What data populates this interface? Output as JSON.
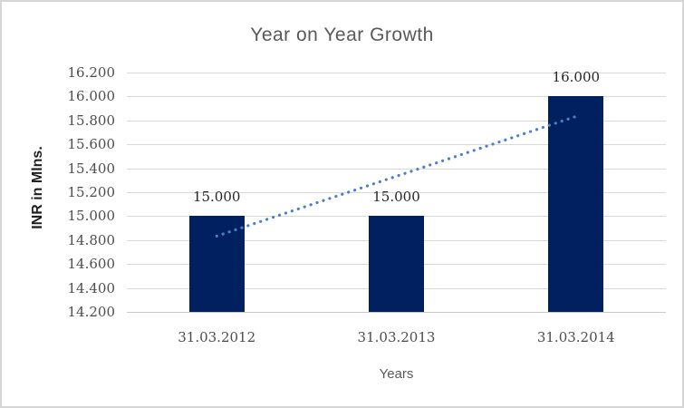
{
  "chart_data": {
    "type": "bar",
    "title": "Year on Year Growth",
    "xlabel": "Years",
    "ylabel": "INR in Mlns.",
    "categories": [
      "31.03.2012",
      "31.03.2013",
      "31.03.2014"
    ],
    "values": [
      15.0,
      15.0,
      16.0
    ],
    "value_labels": [
      "15.000",
      "15.000",
      "16.000"
    ],
    "ylim": [
      14.2,
      16.2
    ],
    "yticks": [
      {
        "value": 16.2,
        "label": "16.200"
      },
      {
        "value": 16.0,
        "label": "16.000"
      },
      {
        "value": 15.8,
        "label": "15.800"
      },
      {
        "value": 15.6,
        "label": "15.600"
      },
      {
        "value": 15.4,
        "label": "15.400"
      },
      {
        "value": 15.2,
        "label": "15.200"
      },
      {
        "value": 15.0,
        "label": "15.000"
      },
      {
        "value": 14.8,
        "label": "14.800"
      },
      {
        "value": 14.6,
        "label": "14.600"
      },
      {
        "value": 14.4,
        "label": "14.400"
      },
      {
        "value": 14.2,
        "label": "14.200"
      }
    ],
    "grid": true,
    "legend": "none",
    "trendline": {
      "style": "dotted",
      "start_value": 14.833,
      "end_value": 15.833,
      "color": "#4a80c9"
    },
    "colors": {
      "bar": "#002060",
      "gridline": "#d9d9d9",
      "axis_line": "#c9c9c9",
      "tick_label": "#4d4d4d",
      "data_label": "#262626",
      "title": "#595959"
    }
  }
}
